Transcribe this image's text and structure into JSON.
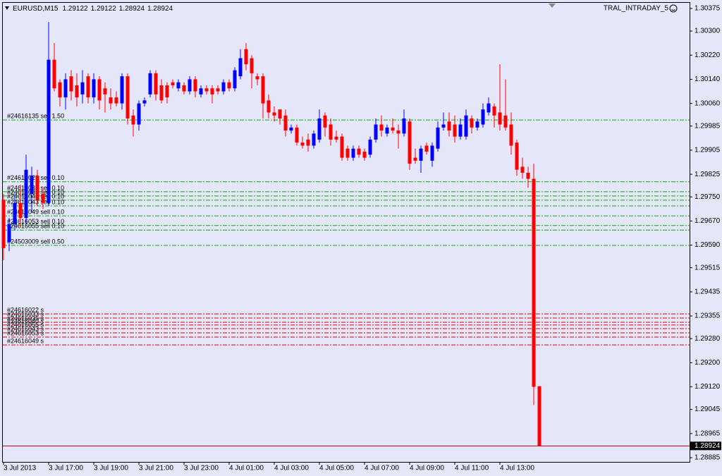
{
  "chart_data": {
    "type": "candlestick",
    "symbol": "EURUSD,M15",
    "expert": "TRAL_INTRADAY_5",
    "up_color": "#0000ff",
    "down_color": "#ff0000",
    "categories": [
      "3 Jul 2013",
      null,
      null,
      null,
      null,
      null,
      null,
      null,
      "3 Jul 17:00",
      null,
      null,
      null,
      null,
      null,
      null,
      null,
      "3 Jul 19:00",
      null,
      null,
      null,
      null,
      null,
      null,
      null,
      "3 Jul 21:00",
      null,
      null,
      null,
      null,
      null,
      null,
      null,
      "3 Jul 23:00",
      null,
      null,
      null,
      null,
      null,
      null,
      null,
      "4 Jul 01:00",
      null,
      null,
      null,
      null,
      null,
      null,
      null,
      "4 Jul 03:00",
      null,
      null,
      null,
      null,
      null,
      null,
      null,
      "4 Jul 05:00",
      null,
      null,
      null,
      null,
      null,
      null,
      null,
      "4 Jul 07:00",
      null,
      null,
      null,
      null,
      null,
      null,
      null,
      "4 Jul 09:00",
      null,
      null,
      null,
      null,
      null,
      null,
      null,
      "4 Jul 11:00",
      null,
      null,
      null,
      null,
      null,
      null,
      null,
      "4 Jul 13:00",
      null,
      null,
      null,
      null,
      null,
      null,
      null
    ],
    "open": [
      1.2974,
      1.296,
      1.2966,
      1.2973,
      1.2968,
      1.2976,
      1.2982,
      1.2976,
      1.2973,
      1.30205,
      1.3013,
      1.3008,
      1.3015,
      1.3012,
      1.3009,
      1.3015,
      1.3008,
      1.3014,
      1.3011,
      1.3008,
      1.3008,
      1.3006,
      1.3015,
      1.3002,
      1.2999,
      1.3006,
      1.3009,
      1.3016,
      1.3012,
      1.3012,
      1.3013,
      1.3011,
      1.3012,
      1.301,
      1.3014,
      1.3009,
      1.3011,
      1.3011,
      1.3011,
      1.301,
      1.3013,
      1.3011,
      1.3015,
      1.3024,
      1.3021,
      1.3015,
      1.3015,
      1.3007,
      1.3003,
      1.3004,
      1.3002,
      1.2997,
      1.2998,
      1.2993,
      1.2994,
      1.2992,
      1.2994,
      1.3002,
      1.2999,
      1.2995,
      1.2995,
      1.2991,
      1.2988,
      1.2991,
      1.299,
      1.2989,
      1.2994,
      1.2999,
      1.2996,
      1.2998,
      1.2997,
      1.2996,
      1.3,
      1.2988,
      1.2987,
      1.2992,
      1.2987,
      1.2991,
      1.2998,
      1.3,
      1.2999,
      1.2995,
      1.2995,
      1.3001,
      1.2998,
      1.2999,
      1.3003,
      1.3005,
      1.3003,
      1.3002,
      1.2999,
      1.2993,
      1.2985,
      1.2983,
      1.2981,
      1.29122
    ],
    "high": [
      1.2976,
      1.2968,
      1.2976,
      1.2979,
      1.2989,
      1.2985,
      1.2984,
      1.2978,
      1.3033,
      1.3026,
      1.3014,
      1.3016,
      1.3017,
      1.3016,
      1.3017,
      1.3016,
      1.3016,
      1.3015,
      1.3013,
      1.3011,
      1.301,
      1.3016,
      1.3016,
      1.3004,
      1.3007,
      1.3008,
      1.3017,
      1.3017,
      1.3014,
      1.3013,
      1.3014,
      1.3014,
      1.3013,
      1.3015,
      1.3015,
      1.3012,
      1.3012,
      1.3012,
      1.3012,
      1.3014,
      1.3014,
      1.3018,
      1.3024,
      1.3026,
      1.3022,
      1.3016,
      1.3016,
      1.3009,
      1.3005,
      1.3004,
      1.3004,
      1.2999,
      1.2999,
      1.2995,
      1.2996,
      1.2997,
      1.3004,
      1.3003,
      1.3001,
      1.2997,
      1.2996,
      1.2992,
      1.2992,
      1.2992,
      1.2991,
      1.2995,
      1.3001,
      1.3002,
      1.2999,
      1.3001,
      1.2999,
      1.3004,
      1.3001,
      1.2991,
      1.2992,
      1.2993,
      1.2993,
      1.3,
      1.3003,
      1.3003,
      1.3002,
      1.3001,
      1.3004,
      1.3002,
      1.3001,
      1.3006,
      1.3008,
      1.3006,
      1.3019,
      1.3014,
      1.3003,
      1.2994,
      1.2988,
      1.2985,
      1.2986,
      1.29122
    ],
    "low": [
      1.2954,
      1.2957,
      1.2964,
      1.2965,
      1.2966,
      1.297,
      1.2972,
      1.2971,
      1.2972,
      1.301,
      1.3005,
      1.3004,
      1.3007,
      1.3005,
      1.3006,
      1.3006,
      1.3006,
      1.3004,
      1.3003,
      1.3004,
      1.3005,
      1.3004,
      1.2999,
      1.2995,
      1.2997,
      1.3005,
      1.3008,
      1.3007,
      1.3006,
      1.3006,
      1.3011,
      1.301,
      1.3009,
      1.3009,
      1.3008,
      1.3008,
      1.3009,
      1.3006,
      1.3009,
      1.3009,
      1.301,
      1.301,
      1.3014,
      1.3017,
      1.3011,
      1.3012,
      1.3001,
      1.3001,
      1.3,
      1.2999,
      1.2995,
      1.2996,
      1.2992,
      1.2991,
      1.299,
      1.2991,
      1.2993,
      1.2995,
      1.2992,
      1.2993,
      1.2987,
      1.2987,
      1.2987,
      1.2988,
      1.2987,
      1.2988,
      1.2993,
      1.2995,
      1.2995,
      1.2996,
      1.2991,
      1.2995,
      1.2984,
      1.2986,
      1.2983,
      1.2989,
      1.2985,
      1.299,
      1.2997,
      1.2995,
      1.2993,
      1.2994,
      1.2994,
      1.2996,
      1.2997,
      1.2998,
      1.3002,
      1.2998,
      1.2997,
      1.2997,
      1.2989,
      1.2982,
      1.2981,
      1.2978,
      1.2906,
      1.28924
    ],
    "close": [
      1.2958,
      1.2966,
      1.2973,
      1.2968,
      1.2984,
      1.2982,
      1.2974,
      1.2973,
      1.30205,
      1.3011,
      1.3008,
      1.3014,
      1.301,
      1.3008,
      1.3013,
      1.3008,
      1.3014,
      1.3007,
      1.3009,
      1.3006,
      1.3006,
      1.3015,
      1.3001,
      1.2999,
      1.3006,
      1.3007,
      1.3016,
      1.3009,
      1.3007,
      1.3008,
      1.3012,
      1.3013,
      1.301,
      1.3014,
      1.301,
      1.3011,
      1.301,
      1.3009,
      1.301,
      1.3013,
      1.3011,
      1.3017,
      1.3021,
      1.3019,
      1.3016,
      1.3014,
      1.3006,
      1.3003,
      1.3002,
      1.3001,
      1.2997,
      1.2998,
      1.2993,
      1.2992,
      1.2992,
      1.2996,
      1.3001,
      1.2998,
      1.2994,
      1.2994,
      1.2988,
      1.2988,
      1.2991,
      1.2989,
      1.2988,
      1.2994,
      1.2999,
      1.2997,
      1.2998,
      1.2997,
      1.2996,
      1.3001,
      1.2986,
      1.2987,
      1.2991,
      1.299,
      1.2992,
      1.2998,
      1.2999,
      1.2997,
      1.2995,
      1.2999,
      1.3002,
      1.2998,
      1.3,
      1.3004,
      1.3006,
      1.3002,
      1.2999,
      1.2998,
      1.2992,
      1.2984,
      1.2983,
      1.2981,
      1.2912,
      1.28924
    ],
    "ylim": [
      1.28871,
      1.30403
    ],
    "yticks": [
      1.30375,
      {
        "value": 1.303,
        "label": "1.30300"
      },
      {
        "value": 1.3022,
        "label": "1.30220"
      },
      {
        "value": 1.3014,
        "label": "1.30140"
      },
      {
        "value": 1.3006,
        "label": "1.30060"
      },
      1.29985,
      1.29905,
      1.29825,
      {
        "value": 1.2975,
        "label": "1.29750"
      },
      {
        "value": 1.2967,
        "label": "1.29670"
      },
      {
        "value": 1.2959,
        "label": "1.29590"
      },
      1.29515,
      1.29435,
      1.29355,
      {
        "value": 1.2928,
        "label": "1.29280"
      },
      {
        "value": 1.292,
        "label": "1.29200"
      },
      {
        "value": 1.2912,
        "label": "1.29120"
      },
      1.29045,
      1.28965,
      1.28885
    ],
    "order_groups": [
      {
        "color": "#00b000",
        "orders": [
          {
            "label": "#24616135 sell 1.50",
            "price": 1.30005
          },
          {
            "label": "#24616022 sell 0.10",
            "price": 1.298
          },
          {
            "label": "#24616033 sell 0.10",
            "price": 1.29767
          },
          {
            "label": "#24616035 sell 0.10",
            "price": 1.29753
          },
          {
            "label": "#24616040 sell 0.10",
            "price": 1.29739
          },
          {
            "label": "#24616043 sell 0.10",
            "price": 1.2972
          },
          {
            "label": "#24616049 sell 0.10",
            "price": 1.29687
          },
          {
            "label": "#24616053 sell 0.10",
            "price": 1.29655
          },
          {
            "label": "#24616055 sell 0.10",
            "price": 1.2964
          },
          {
            "label": "#24503009 sell 0.50",
            "price": 1.29589
          }
        ]
      },
      {
        "color": "#e00000",
        "orders": [
          {
            "label": "#24616022 s",
            "price": 1.29362
          },
          {
            "label": "#24616033 s",
            "price": 1.29348
          },
          {
            "label": "#24616035 s",
            "price": 1.29334
          },
          {
            "label": "#24616040 s",
            "price": 1.29325
          },
          {
            "label": "#24616055 s",
            "price": 1.29313
          },
          {
            "label": "#24616043 s",
            "price": 1.29299
          },
          {
            "label": "#24616053 s",
            "price": 1.29285
          },
          {
            "label": "#24616049 s",
            "price": 1.29259
          }
        ]
      }
    ]
  }
}
